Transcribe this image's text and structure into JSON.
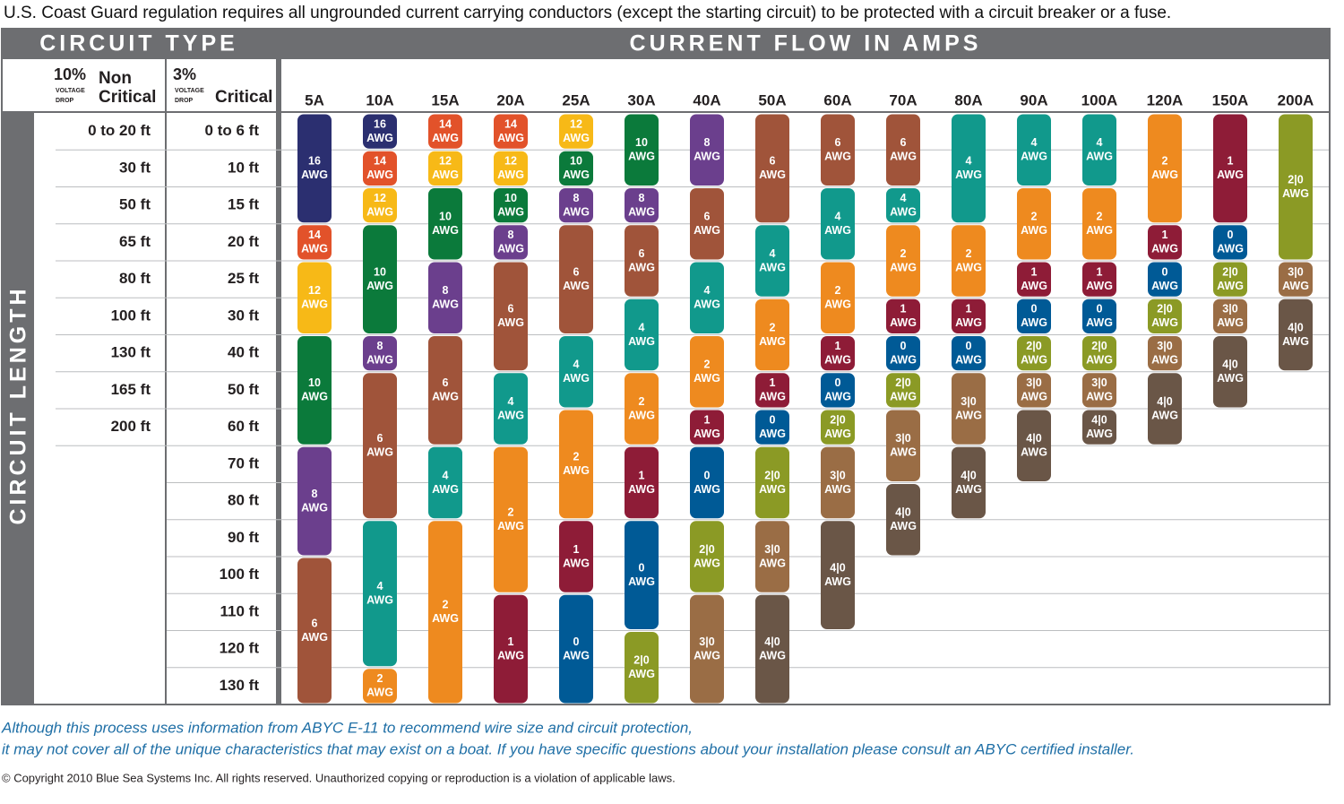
{
  "notice": "U.S. Coast Guard regulation requires all ungrounded current carrying conductors (except the starting circuit) to be protected with a circuit breaker or a fuse.",
  "header": {
    "circuit_type": "CIRCUIT TYPE",
    "current_flow": "CURRENT FLOW IN AMPS",
    "circuit_length": "CIRCUIT LENGTH"
  },
  "non_critical": {
    "percent": "10%",
    "drop_1": "VOLTAGE",
    "drop_2": "DROP",
    "label_1": "Non",
    "label_2": "Critical",
    "lengths": [
      "0 to 20 ft",
      "30 ft",
      "50 ft",
      "65 ft",
      "80 ft",
      "100 ft",
      "130 ft",
      "165 ft",
      "200 ft"
    ]
  },
  "critical": {
    "percent": "3%",
    "drop_1": "VOLTAGE",
    "drop_2": "DROP",
    "label": "Critical",
    "lengths": [
      "0 to 6 ft",
      "10 ft",
      "15 ft",
      "20 ft",
      "25 ft",
      "30 ft",
      "40 ft",
      "50 ft",
      "60 ft",
      "70 ft",
      "80 ft",
      "90 ft",
      "100 ft",
      "110 ft",
      "120 ft",
      "130 ft"
    ]
  },
  "unit": "AWG",
  "gauge_colors": {
    "16": "#2b2f70",
    "14": "#e2522a",
    "12": "#f7b917",
    "10": "#0b7a3b",
    "8": "#6b3f8d",
    "6": "#a0543a",
    "4": "#11998c",
    "2": "#ee8a1f",
    "1": "#8e1c37",
    "0": "#005a96",
    "2|0": "#8b9a25",
    "3|0": "#9a6d45",
    "4|0": "#6a5647"
  },
  "columns": [
    {
      "amps": "5A",
      "segments": [
        {
          "gauge": "16",
          "rows": 3
        },
        {
          "gauge": "14",
          "rows": 1
        },
        {
          "gauge": "12",
          "rows": 2
        },
        {
          "gauge": "10",
          "rows": 3
        },
        {
          "gauge": "8",
          "rows": 3
        },
        {
          "gauge": "6",
          "rows": 4
        }
      ]
    },
    {
      "amps": "10A",
      "segments": [
        {
          "gauge": "16",
          "rows": 1
        },
        {
          "gauge": "14",
          "rows": 1
        },
        {
          "gauge": "12",
          "rows": 1
        },
        {
          "gauge": "10",
          "rows": 3
        },
        {
          "gauge": "8",
          "rows": 1
        },
        {
          "gauge": "6",
          "rows": 4
        },
        {
          "gauge": "4",
          "rows": 4
        },
        {
          "gauge": "2",
          "rows": 1
        }
      ]
    },
    {
      "amps": "15A",
      "segments": [
        {
          "gauge": "14",
          "rows": 1
        },
        {
          "gauge": "12",
          "rows": 1
        },
        {
          "gauge": "10",
          "rows": 2
        },
        {
          "gauge": "8",
          "rows": 2
        },
        {
          "gauge": "6",
          "rows": 3
        },
        {
          "gauge": "4",
          "rows": 2
        },
        {
          "gauge": "2",
          "rows": 5
        }
      ]
    },
    {
      "amps": "20A",
      "segments": [
        {
          "gauge": "14",
          "rows": 1
        },
        {
          "gauge": "12",
          "rows": 1
        },
        {
          "gauge": "10",
          "rows": 1
        },
        {
          "gauge": "8",
          "rows": 1
        },
        {
          "gauge": "6",
          "rows": 3
        },
        {
          "gauge": "4",
          "rows": 2
        },
        {
          "gauge": "2",
          "rows": 4
        },
        {
          "gauge": "1",
          "rows": 3
        }
      ]
    },
    {
      "amps": "25A",
      "segments": [
        {
          "gauge": "12",
          "rows": 1
        },
        {
          "gauge": "10",
          "rows": 1
        },
        {
          "gauge": "8",
          "rows": 1
        },
        {
          "gauge": "6",
          "rows": 3
        },
        {
          "gauge": "4",
          "rows": 2
        },
        {
          "gauge": "2",
          "rows": 3
        },
        {
          "gauge": "1",
          "rows": 2
        },
        {
          "gauge": "0",
          "rows": 3
        }
      ]
    },
    {
      "amps": "30A",
      "segments": [
        {
          "gauge": "10",
          "rows": 2
        },
        {
          "gauge": "8",
          "rows": 1
        },
        {
          "gauge": "6",
          "rows": 2
        },
        {
          "gauge": "4",
          "rows": 2
        },
        {
          "gauge": "2",
          "rows": 2
        },
        {
          "gauge": "1",
          "rows": 2
        },
        {
          "gauge": "0",
          "rows": 3
        },
        {
          "gauge": "2|0",
          "rows": 2
        }
      ]
    },
    {
      "amps": "40A",
      "segments": [
        {
          "gauge": "8",
          "rows": 2
        },
        {
          "gauge": "6",
          "rows": 2
        },
        {
          "gauge": "4",
          "rows": 2
        },
        {
          "gauge": "2",
          "rows": 2
        },
        {
          "gauge": "1",
          "rows": 1
        },
        {
          "gauge": "0",
          "rows": 2
        },
        {
          "gauge": "2|0",
          "rows": 2
        },
        {
          "gauge": "3|0",
          "rows": 3
        }
      ]
    },
    {
      "amps": "50A",
      "segments": [
        {
          "gauge": "6",
          "rows": 3
        },
        {
          "gauge": "4",
          "rows": 2
        },
        {
          "gauge": "2",
          "rows": 2
        },
        {
          "gauge": "1",
          "rows": 1
        },
        {
          "gauge": "0",
          "rows": 1
        },
        {
          "gauge": "2|0",
          "rows": 2
        },
        {
          "gauge": "3|0",
          "rows": 2
        },
        {
          "gauge": "4|0",
          "rows": 3
        }
      ]
    },
    {
      "amps": "60A",
      "segments": [
        {
          "gauge": "6",
          "rows": 2
        },
        {
          "gauge": "4",
          "rows": 2
        },
        {
          "gauge": "2",
          "rows": 2
        },
        {
          "gauge": "1",
          "rows": 1
        },
        {
          "gauge": "0",
          "rows": 1
        },
        {
          "gauge": "2|0",
          "rows": 1
        },
        {
          "gauge": "3|0",
          "rows": 2
        },
        {
          "gauge": "4|0",
          "rows": 3
        }
      ]
    },
    {
      "amps": "70A",
      "segments": [
        {
          "gauge": "6",
          "rows": 2
        },
        {
          "gauge": "4",
          "rows": 1
        },
        {
          "gauge": "2",
          "rows": 2
        },
        {
          "gauge": "1",
          "rows": 1
        },
        {
          "gauge": "0",
          "rows": 1
        },
        {
          "gauge": "2|0",
          "rows": 1
        },
        {
          "gauge": "3|0",
          "rows": 2
        },
        {
          "gauge": "4|0",
          "rows": 2
        }
      ]
    },
    {
      "amps": "80A",
      "segments": [
        {
          "gauge": "4",
          "rows": 3
        },
        {
          "gauge": "2",
          "rows": 2
        },
        {
          "gauge": "1",
          "rows": 1
        },
        {
          "gauge": "0",
          "rows": 1
        },
        {
          "gauge": "3|0",
          "rows": 2
        },
        {
          "gauge": "4|0",
          "rows": 2
        }
      ]
    },
    {
      "amps": "90A",
      "segments": [
        {
          "gauge": "4",
          "rows": 2
        },
        {
          "gauge": "2",
          "rows": 2
        },
        {
          "gauge": "1",
          "rows": 1
        },
        {
          "gauge": "0",
          "rows": 1
        },
        {
          "gauge": "2|0",
          "rows": 1
        },
        {
          "gauge": "3|0",
          "rows": 1
        },
        {
          "gauge": "4|0",
          "rows": 2
        }
      ]
    },
    {
      "amps": "100A",
      "segments": [
        {
          "gauge": "4",
          "rows": 2
        },
        {
          "gauge": "2",
          "rows": 2
        },
        {
          "gauge": "1",
          "rows": 1
        },
        {
          "gauge": "0",
          "rows": 1
        },
        {
          "gauge": "2|0",
          "rows": 1
        },
        {
          "gauge": "3|0",
          "rows": 1
        },
        {
          "gauge": "4|0",
          "rows": 1
        }
      ]
    },
    {
      "amps": "120A",
      "segments": [
        {
          "gauge": "2",
          "rows": 3
        },
        {
          "gauge": "1",
          "rows": 1
        },
        {
          "gauge": "0",
          "rows": 1
        },
        {
          "gauge": "2|0",
          "rows": 1
        },
        {
          "gauge": "3|0",
          "rows": 1
        },
        {
          "gauge": "4|0",
          "rows": 2
        }
      ]
    },
    {
      "amps": "150A",
      "segments": [
        {
          "gauge": "1",
          "rows": 3
        },
        {
          "gauge": "0",
          "rows": 1
        },
        {
          "gauge": "2|0",
          "rows": 1
        },
        {
          "gauge": "3|0",
          "rows": 1
        },
        {
          "gauge": "4|0",
          "rows": 2
        }
      ]
    },
    {
      "amps": "200A",
      "segments": [
        {
          "gauge": "2|0",
          "rows": 4
        },
        {
          "gauge": "3|0",
          "rows": 1
        },
        {
          "gauge": "4|0",
          "rows": 2
        }
      ]
    }
  ],
  "footer": {
    "note_1": "Although this process uses information from  ABYC E-11 to recommend wire size and circuit protection,",
    "note_2": "it may not cover all of the unique characteristics that may exist on a boat. If you have specific questions about your installation please consult an ABYC certified installer.",
    "copyright": "© Copyright 2010 Blue Sea Systems Inc. All rights reserved. Unauthorized copying or reproduction is a violation of applicable laws."
  }
}
